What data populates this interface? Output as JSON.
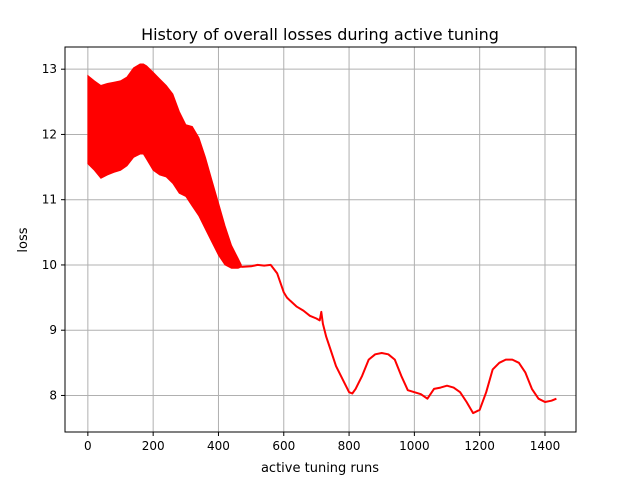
{
  "chart_data": {
    "type": "line",
    "title": "History of overall losses during active tuning",
    "xlabel": "active tuning runs",
    "ylabel": "loss",
    "xlim": [
      -70,
      1495
    ],
    "ylim": [
      7.44,
      13.34
    ],
    "xticks": [
      0,
      200,
      400,
      600,
      800,
      1000,
      1200,
      1400
    ],
    "yticks": [
      8,
      9,
      10,
      11,
      12,
      13
    ],
    "grid": true,
    "legend": "none",
    "series": [
      {
        "color": "#ff0000",
        "band": {
          "x": [
            0,
            20,
            40,
            60,
            80,
            100,
            120,
            140,
            160,
            170,
            180,
            200,
            220,
            240,
            260,
            280,
            300,
            320,
            340,
            360,
            380,
            400,
            420,
            440,
            460,
            470
          ],
          "upper": [
            12.9,
            12.82,
            12.75,
            12.78,
            12.8,
            12.82,
            12.88,
            13.02,
            13.08,
            13.08,
            13.05,
            12.95,
            12.85,
            12.75,
            12.62,
            12.35,
            12.15,
            12.12,
            11.95,
            11.65,
            11.3,
            10.95,
            10.6,
            10.3,
            10.1,
            10.0
          ],
          "lower": [
            11.55,
            11.45,
            11.33,
            11.38,
            11.42,
            11.45,
            11.52,
            11.65,
            11.7,
            11.7,
            11.62,
            11.45,
            11.38,
            11.35,
            11.25,
            11.1,
            11.05,
            10.9,
            10.75,
            10.55,
            10.35,
            10.15,
            10.0,
            9.95,
            9.95,
            9.97
          ]
        },
        "x": [
          470,
          500,
          520,
          540,
          560,
          580,
          600,
          610,
          620,
          640,
          660,
          680,
          700,
          710,
          715,
          720,
          730,
          740,
          760,
          780,
          800,
          810,
          820,
          840,
          860,
          880,
          900,
          920,
          940,
          960,
          980,
          1000,
          1020,
          1040,
          1060,
          1080,
          1100,
          1120,
          1140,
          1160,
          1180,
          1200,
          1220,
          1240,
          1260,
          1280,
          1300,
          1320,
          1340,
          1360,
          1380,
          1400,
          1420,
          1435
        ],
        "y": [
          9.97,
          9.98,
          10.0,
          9.99,
          10.0,
          9.87,
          9.58,
          9.5,
          9.45,
          9.36,
          9.3,
          9.22,
          9.18,
          9.15,
          9.28,
          9.1,
          8.9,
          8.75,
          8.45,
          8.25,
          8.05,
          8.03,
          8.1,
          8.3,
          8.55,
          8.63,
          8.65,
          8.63,
          8.55,
          8.3,
          8.08,
          8.05,
          8.02,
          7.95,
          8.1,
          8.12,
          8.15,
          8.12,
          8.05,
          7.9,
          7.73,
          7.78,
          8.05,
          8.4,
          8.5,
          8.55,
          8.55,
          8.5,
          8.35,
          8.1,
          7.95,
          7.9,
          7.92,
          7.95
        ]
      }
    ]
  }
}
